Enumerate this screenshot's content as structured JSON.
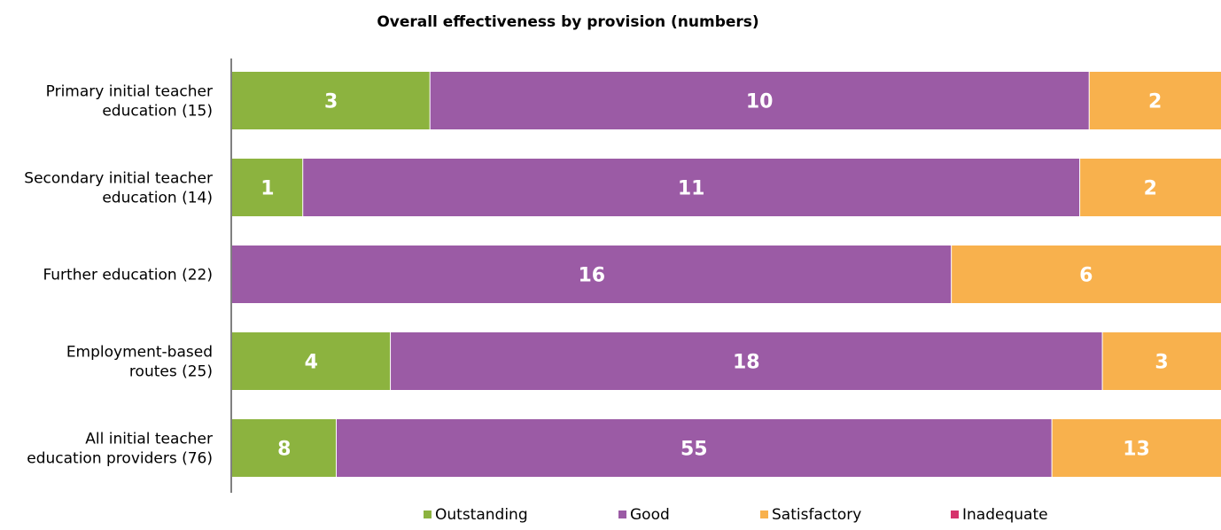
{
  "chart_data": {
    "type": "bar",
    "orientation": "horizontal",
    "stacking": "percent",
    "title": "Overall effectiveness by provision (numbers)",
    "categories": [
      [
        "Primary initial teacher",
        "education (15)"
      ],
      [
        "Secondary initial teacher",
        "education (14)"
      ],
      [
        "Further education (22)"
      ],
      [
        "Employment-based",
        "routes (25)"
      ],
      [
        "All initial teacher",
        "education providers (76)"
      ]
    ],
    "series": [
      {
        "name": "Outstanding",
        "color": "#8cb33f",
        "values": [
          3,
          1,
          0,
          4,
          8
        ]
      },
      {
        "name": "Good",
        "color": "#9b5ba5",
        "values": [
          10,
          11,
          16,
          18,
          55
        ]
      },
      {
        "name": "Satisfactory",
        "color": "#f8b14d",
        "values": [
          2,
          2,
          6,
          3,
          13
        ]
      },
      {
        "name": "Inadequate",
        "color": "#d6336c",
        "values": [
          0,
          0,
          0,
          0,
          0
        ]
      }
    ],
    "legend_position": "bottom",
    "grid": false
  }
}
